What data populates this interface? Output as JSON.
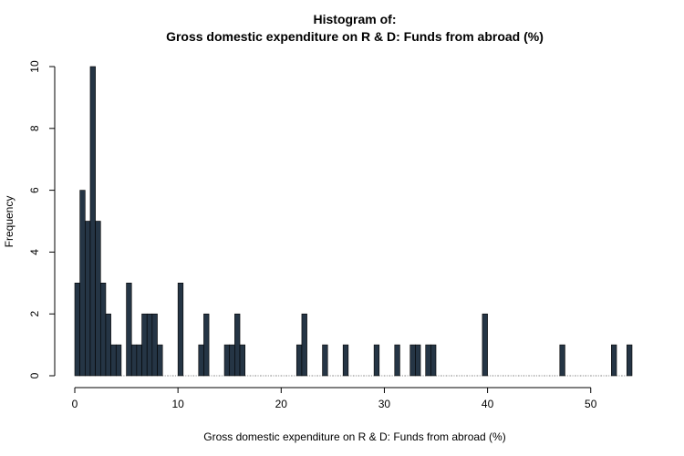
{
  "chart_data": {
    "type": "bar",
    "title_line1": "Histogram of:",
    "title_line2": "Gross domestic expenditure on R & D: Funds from abroad (%)",
    "xlabel": "Gross domestic expenditure on R & D: Funds from abroad (%)",
    "ylabel": "Frequency",
    "bin_width": 0.5,
    "bin_start": 0,
    "xlim": [
      0,
      54
    ],
    "ylim": [
      0,
      10
    ],
    "x_ticks": [
      0,
      10,
      20,
      30,
      40,
      50
    ],
    "y_ticks": [
      0,
      2,
      4,
      6,
      8,
      10
    ],
    "bar_color": "#253545",
    "values": [
      3,
      6,
      5,
      10,
      5,
      3,
      2,
      1,
      1,
      0,
      3,
      1,
      1,
      2,
      2,
      2,
      1,
      0,
      0,
      0,
      3,
      0,
      0,
      0,
      1,
      2,
      0,
      0,
      0,
      1,
      1,
      2,
      1,
      0,
      0,
      0,
      0,
      0,
      0,
      0,
      0,
      0,
      0,
      1,
      2,
      0,
      0,
      0,
      1,
      0,
      0,
      0,
      1,
      0,
      0,
      0,
      0,
      0,
      1,
      0,
      0,
      0,
      1,
      0,
      0,
      1,
      1,
      0,
      1,
      1,
      0,
      0,
      0,
      0,
      0,
      0,
      0,
      0,
      0,
      2,
      0,
      0,
      0,
      0,
      0,
      0,
      0,
      0,
      0,
      0,
      0,
      0,
      0,
      0,
      1,
      0,
      0,
      0,
      0,
      0,
      0,
      0,
      0,
      0,
      1,
      0,
      0,
      1
    ]
  }
}
